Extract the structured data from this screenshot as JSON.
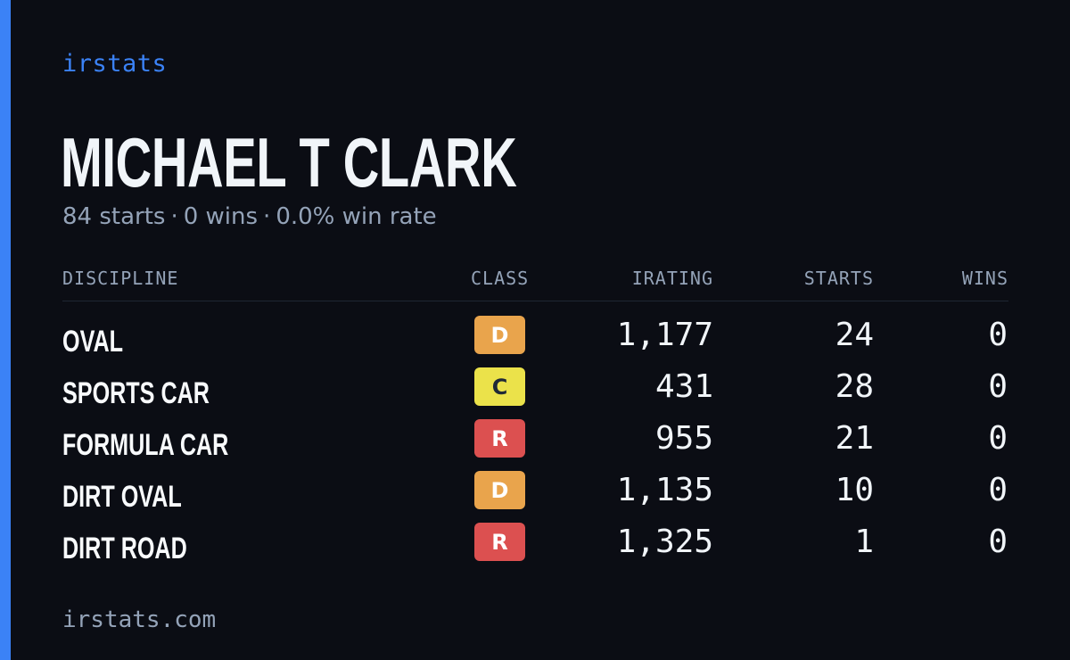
{
  "brand": "irstats",
  "driver": {
    "name": "MICHAEL T CLARK",
    "starts": "84 starts",
    "wins": "0 wins",
    "win_rate": "0.0% win rate",
    "separator": "·"
  },
  "table": {
    "headers": {
      "discipline": "DISCIPLINE",
      "class": "CLASS",
      "irating": "IRATING",
      "starts": "STARTS",
      "wins": "WINS"
    },
    "rows": [
      {
        "discipline": "OVAL",
        "class": "D",
        "irating": "1,177",
        "starts": "24",
        "wins": "0"
      },
      {
        "discipline": "SPORTS CAR",
        "class": "C",
        "irating": "431",
        "starts": "28",
        "wins": "0"
      },
      {
        "discipline": "FORMULA CAR",
        "class": "R",
        "irating": "955",
        "starts": "21",
        "wins": "0"
      },
      {
        "discipline": "DIRT OVAL",
        "class": "D",
        "irating": "1,135",
        "starts": "10",
        "wins": "0"
      },
      {
        "discipline": "DIRT ROAD",
        "class": "R",
        "irating": "1,325",
        "starts": "1",
        "wins": "0"
      }
    ]
  },
  "class_colors": {
    "D": {
      "bg": "#e9a44c",
      "fg": "#ffffff"
    },
    "C": {
      "bg": "#ebe24a",
      "fg": "#1f2937"
    },
    "R": {
      "bg": "#dc5050",
      "fg": "#ffffff"
    }
  },
  "colors": {
    "background": "#0b0d14",
    "accent": "#3b82f6",
    "muted_text": "#94a3b8",
    "primary_text": "#f1f5f9"
  },
  "footer": "irstats.com"
}
